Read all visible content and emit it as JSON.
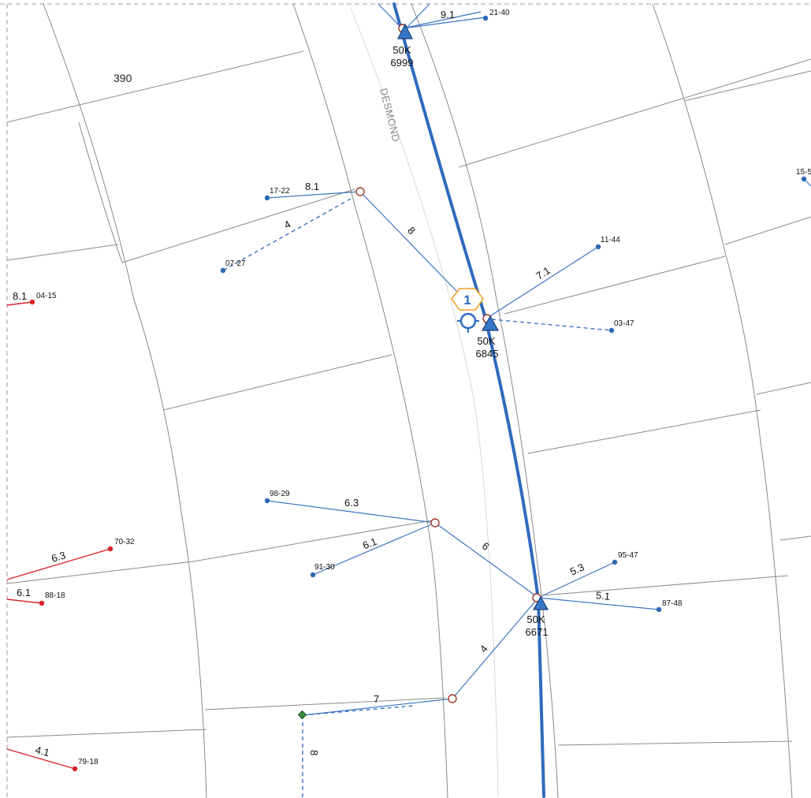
{
  "map": {
    "street_name": "DESMOND",
    "parcel_label": "390",
    "selection_badge": "1",
    "colors": {
      "primary_line": "#2f6bbd",
      "service_line": "#3d74c2",
      "service_red": "#d9232a",
      "pole_outline": "#9b3a25",
      "badge_outline": "#f0a020"
    },
    "transformers": [
      {
        "size": "50K",
        "id": "6999"
      },
      {
        "size": "50K",
        "id": "6845"
      },
      {
        "size": "50K",
        "id": "6671"
      }
    ],
    "meters": {
      "m_21_40": "21-40",
      "m_17_22": "17-22",
      "m_07_27": "07-27",
      "m_11_44": "11-44",
      "m_03_47": "03-47",
      "m_15_5": "15-5",
      "m_04_15": "04-15",
      "m_98_29": "98-29",
      "m_91_30": "91-30",
      "m_70_32": "70-32",
      "m_88_18": "88-18",
      "m_95_47": "95-47",
      "m_87_48": "87-48",
      "m_79_18": "79-18"
    },
    "spans": {
      "s_9_1": "9.1",
      "s_8_1_top": "8.1",
      "s_4_top": "4",
      "s_8_diag": "8",
      "s_7_1": "7.1",
      "s_8_1_left": "8.1",
      "s_6_3_blue": "6.3",
      "s_6_1_blue": "6.1",
      "s_6": "6",
      "s_6_3_red": "6.3",
      "s_6_1_red": "6.1",
      "s_5_3": "5.3",
      "s_5_1": "5.1",
      "s_4_lower": "4",
      "s_7": "7",
      "s_8_vert": "8",
      "s_4_1": "4.1"
    }
  }
}
